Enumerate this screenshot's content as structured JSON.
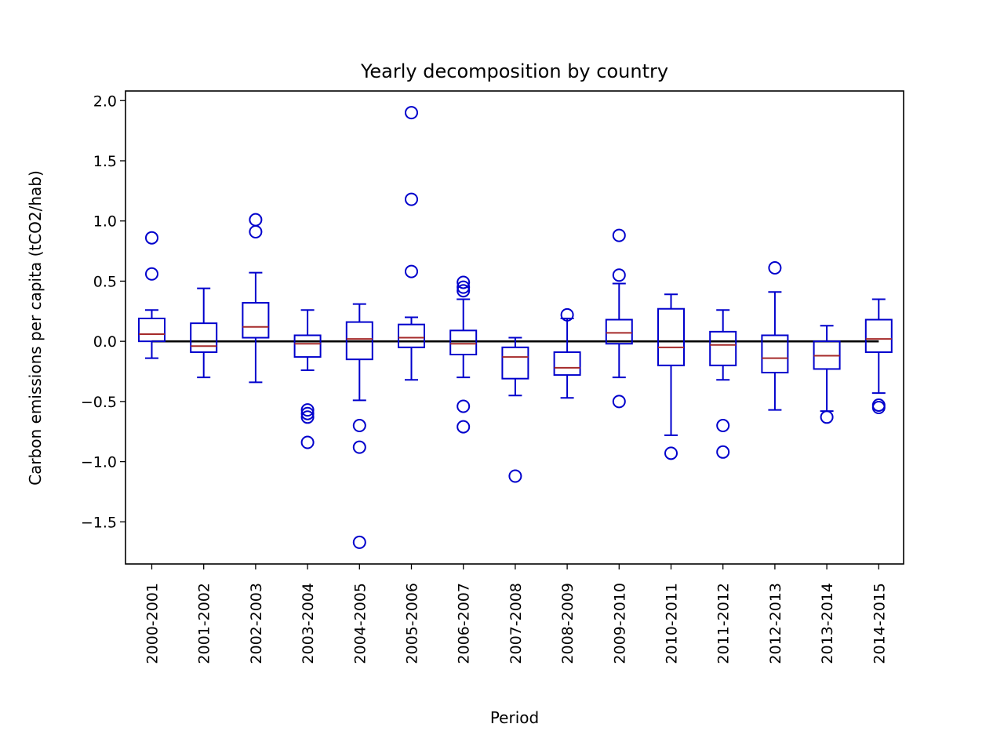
{
  "chart_data": {
    "type": "box",
    "title": "Yearly decomposition by country",
    "xlabel": "Period",
    "ylabel": "Carbon emissions per capita (tCO2/hab)",
    "ylim": [
      -1.85,
      2.08
    ],
    "yticks": [
      2.0,
      1.5,
      1.0,
      0.5,
      0.0,
      -0.5,
      -1.0,
      -1.5
    ],
    "ytick_labels": [
      "2.0",
      "1.5",
      "1.0",
      "0.5",
      "0.0",
      "−0.5",
      "−1.0",
      "−1.5"
    ],
    "reference_line_y": 0.0,
    "colors": {
      "box": "#0000cc",
      "median": "#a52a2a",
      "reference": "#000000"
    },
    "categories": [
      "2000-2001",
      "2001-2002",
      "2002-2003",
      "2003-2004",
      "2004-2005",
      "2005-2006",
      "2006-2007",
      "2007-2008",
      "2008-2009",
      "2009-2010",
      "2010-2011",
      "2011-2012",
      "2012-2013",
      "2013-2014",
      "2014-2015"
    ],
    "boxes": [
      {
        "whislo": -0.14,
        "q1": 0.0,
        "med": 0.06,
        "q3": 0.19,
        "whishi": 0.26,
        "fliers": [
          0.86,
          0.56
        ]
      },
      {
        "whislo": -0.3,
        "q1": -0.09,
        "med": -0.04,
        "q3": 0.15,
        "whishi": 0.44,
        "fliers": []
      },
      {
        "whislo": -0.34,
        "q1": 0.03,
        "med": 0.12,
        "q3": 0.32,
        "whishi": 0.57,
        "fliers": [
          1.01,
          0.91
        ]
      },
      {
        "whislo": -0.24,
        "q1": -0.13,
        "med": -0.02,
        "q3": 0.05,
        "whishi": 0.26,
        "fliers": [
          -0.57,
          -0.6,
          -0.63,
          -0.84
        ]
      },
      {
        "whislo": -0.49,
        "q1": -0.15,
        "med": 0.02,
        "q3": 0.16,
        "whishi": 0.31,
        "fliers": [
          -0.7,
          -0.88,
          -1.67
        ]
      },
      {
        "whislo": -0.32,
        "q1": -0.05,
        "med": 0.03,
        "q3": 0.14,
        "whishi": 0.2,
        "fliers": [
          1.9,
          1.18,
          0.58
        ]
      },
      {
        "whislo": -0.3,
        "q1": -0.11,
        "med": -0.02,
        "q3": 0.09,
        "whishi": 0.35,
        "fliers": [
          0.49,
          0.45,
          0.42,
          -0.54,
          -0.71
        ]
      },
      {
        "whislo": -0.45,
        "q1": -0.31,
        "med": -0.13,
        "q3": -0.05,
        "whishi": 0.03,
        "fliers": [
          -1.12
        ]
      },
      {
        "whislo": -0.47,
        "q1": -0.28,
        "med": -0.22,
        "q3": -0.09,
        "whishi": 0.19,
        "fliers": [
          0.22
        ]
      },
      {
        "whislo": -0.3,
        "q1": -0.02,
        "med": 0.07,
        "q3": 0.18,
        "whishi": 0.48,
        "fliers": [
          0.88,
          0.55,
          -0.5
        ]
      },
      {
        "whislo": -0.78,
        "q1": -0.2,
        "med": -0.05,
        "q3": 0.27,
        "whishi": 0.39,
        "fliers": [
          -0.93
        ]
      },
      {
        "whislo": -0.32,
        "q1": -0.2,
        "med": -0.03,
        "q3": 0.08,
        "whishi": 0.26,
        "fliers": [
          -0.7,
          -0.92
        ]
      },
      {
        "whislo": -0.57,
        "q1": -0.26,
        "med": -0.14,
        "q3": 0.05,
        "whishi": 0.41,
        "fliers": [
          0.61
        ]
      },
      {
        "whislo": -0.58,
        "q1": -0.23,
        "med": -0.12,
        "q3": 0.0,
        "whishi": 0.13,
        "fliers": [
          -0.63
        ]
      },
      {
        "whislo": -0.43,
        "q1": -0.09,
        "med": 0.02,
        "q3": 0.18,
        "whishi": 0.35,
        "fliers": [
          -0.53,
          -0.55
        ]
      }
    ]
  }
}
